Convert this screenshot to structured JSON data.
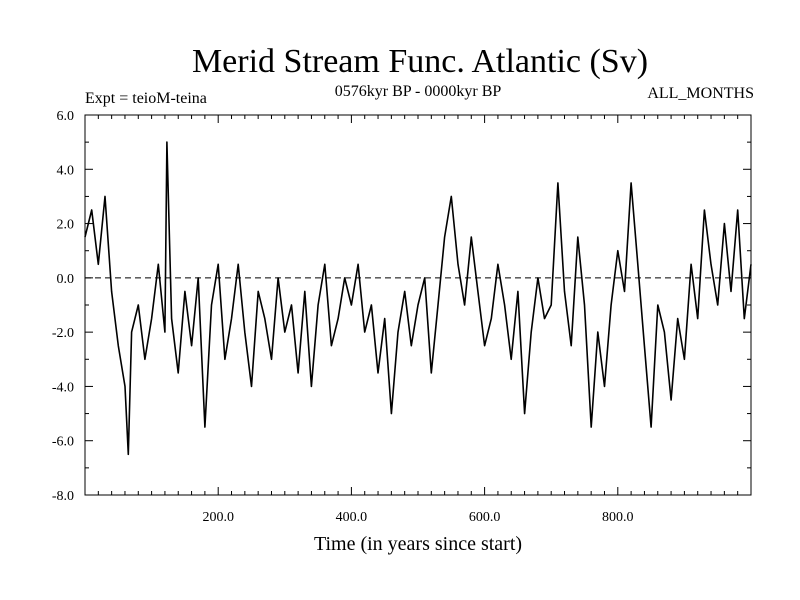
{
  "chart_data": {
    "type": "line",
    "title": "Merid Stream Func. Atlantic (Sv)",
    "subtitle_left": "Expt = teioM-teina",
    "subtitle_center": "0576kyr BP - 0000kyr BP",
    "subtitle_right": "ALL_MONTHS",
    "xlabel": "Time (in years since start)",
    "ylabel": "",
    "xlim": [
      0,
      1000
    ],
    "ylim": [
      -8.0,
      6.0
    ],
    "x_ticks": [
      200,
      400,
      600,
      800
    ],
    "x_tick_labels": [
      "200.0",
      "400.0",
      "600.0",
      "800.0"
    ],
    "y_ticks": [
      -8,
      -6,
      -4,
      -2,
      0,
      2,
      4,
      6
    ],
    "y_tick_labels": [
      "-8.0",
      "-6.0",
      "-4.0",
      "-2.0",
      "0.0",
      "2.0",
      "4.0",
      "6.0"
    ],
    "zero_line": {
      "value": 0.0,
      "style": "dashed"
    },
    "grid": false,
    "series": [
      {
        "name": "Merid Stream Func. Atlantic",
        "x": [
          0,
          10,
          20,
          30,
          40,
          50,
          60,
          65,
          70,
          80,
          90,
          100,
          110,
          120,
          123,
          130,
          140,
          150,
          160,
          170,
          180,
          190,
          200,
          210,
          220,
          230,
          240,
          250,
          260,
          270,
          280,
          290,
          300,
          310,
          320,
          330,
          340,
          350,
          360,
          370,
          380,
          390,
          400,
          410,
          420,
          430,
          440,
          450,
          460,
          470,
          480,
          490,
          500,
          510,
          520,
          530,
          540,
          550,
          560,
          570,
          580,
          590,
          600,
          610,
          620,
          630,
          640,
          650,
          660,
          670,
          680,
          690,
          700,
          710,
          720,
          730,
          740,
          750,
          760,
          770,
          780,
          790,
          800,
          810,
          820,
          830,
          840,
          850,
          860,
          870,
          880,
          890,
          900,
          910,
          920,
          930,
          940,
          950,
          960,
          970,
          980,
          990,
          1000
        ],
        "values": [
          1.5,
          2.5,
          0.5,
          3.0,
          -0.5,
          -2.5,
          -4.0,
          -6.5,
          -2.0,
          -1.0,
          -3.0,
          -1.5,
          0.5,
          -2.0,
          5.0,
          -1.5,
          -3.5,
          -0.5,
          -2.5,
          0.0,
          -5.5,
          -1.0,
          0.5,
          -3.0,
          -1.5,
          0.5,
          -2.0,
          -4.0,
          -0.5,
          -1.5,
          -3.0,
          0.0,
          -2.0,
          -1.0,
          -3.5,
          -0.5,
          -4.0,
          -1.0,
          0.5,
          -2.5,
          -1.5,
          0.0,
          -1.0,
          0.5,
          -2.0,
          -1.0,
          -3.5,
          -1.5,
          -5.0,
          -2.0,
          -0.5,
          -2.5,
          -1.0,
          0.0,
          -3.5,
          -1.0,
          1.5,
          3.0,
          0.5,
          -1.0,
          1.5,
          -0.5,
          -2.5,
          -1.5,
          0.5,
          -1.0,
          -3.0,
          -0.5,
          -5.0,
          -2.0,
          0.0,
          -1.5,
          -1.0,
          3.5,
          -0.5,
          -2.5,
          1.5,
          -1.0,
          -5.5,
          -2.0,
          -4.0,
          -1.0,
          1.0,
          -0.5,
          3.5,
          0.5,
          -2.5,
          -5.5,
          -1.0,
          -2.0,
          -4.5,
          -1.5,
          -3.0,
          0.5,
          -1.5,
          2.5,
          0.5,
          -1.0,
          2.0,
          -0.5,
          2.5,
          -1.5,
          0.5
        ]
      }
    ]
  }
}
